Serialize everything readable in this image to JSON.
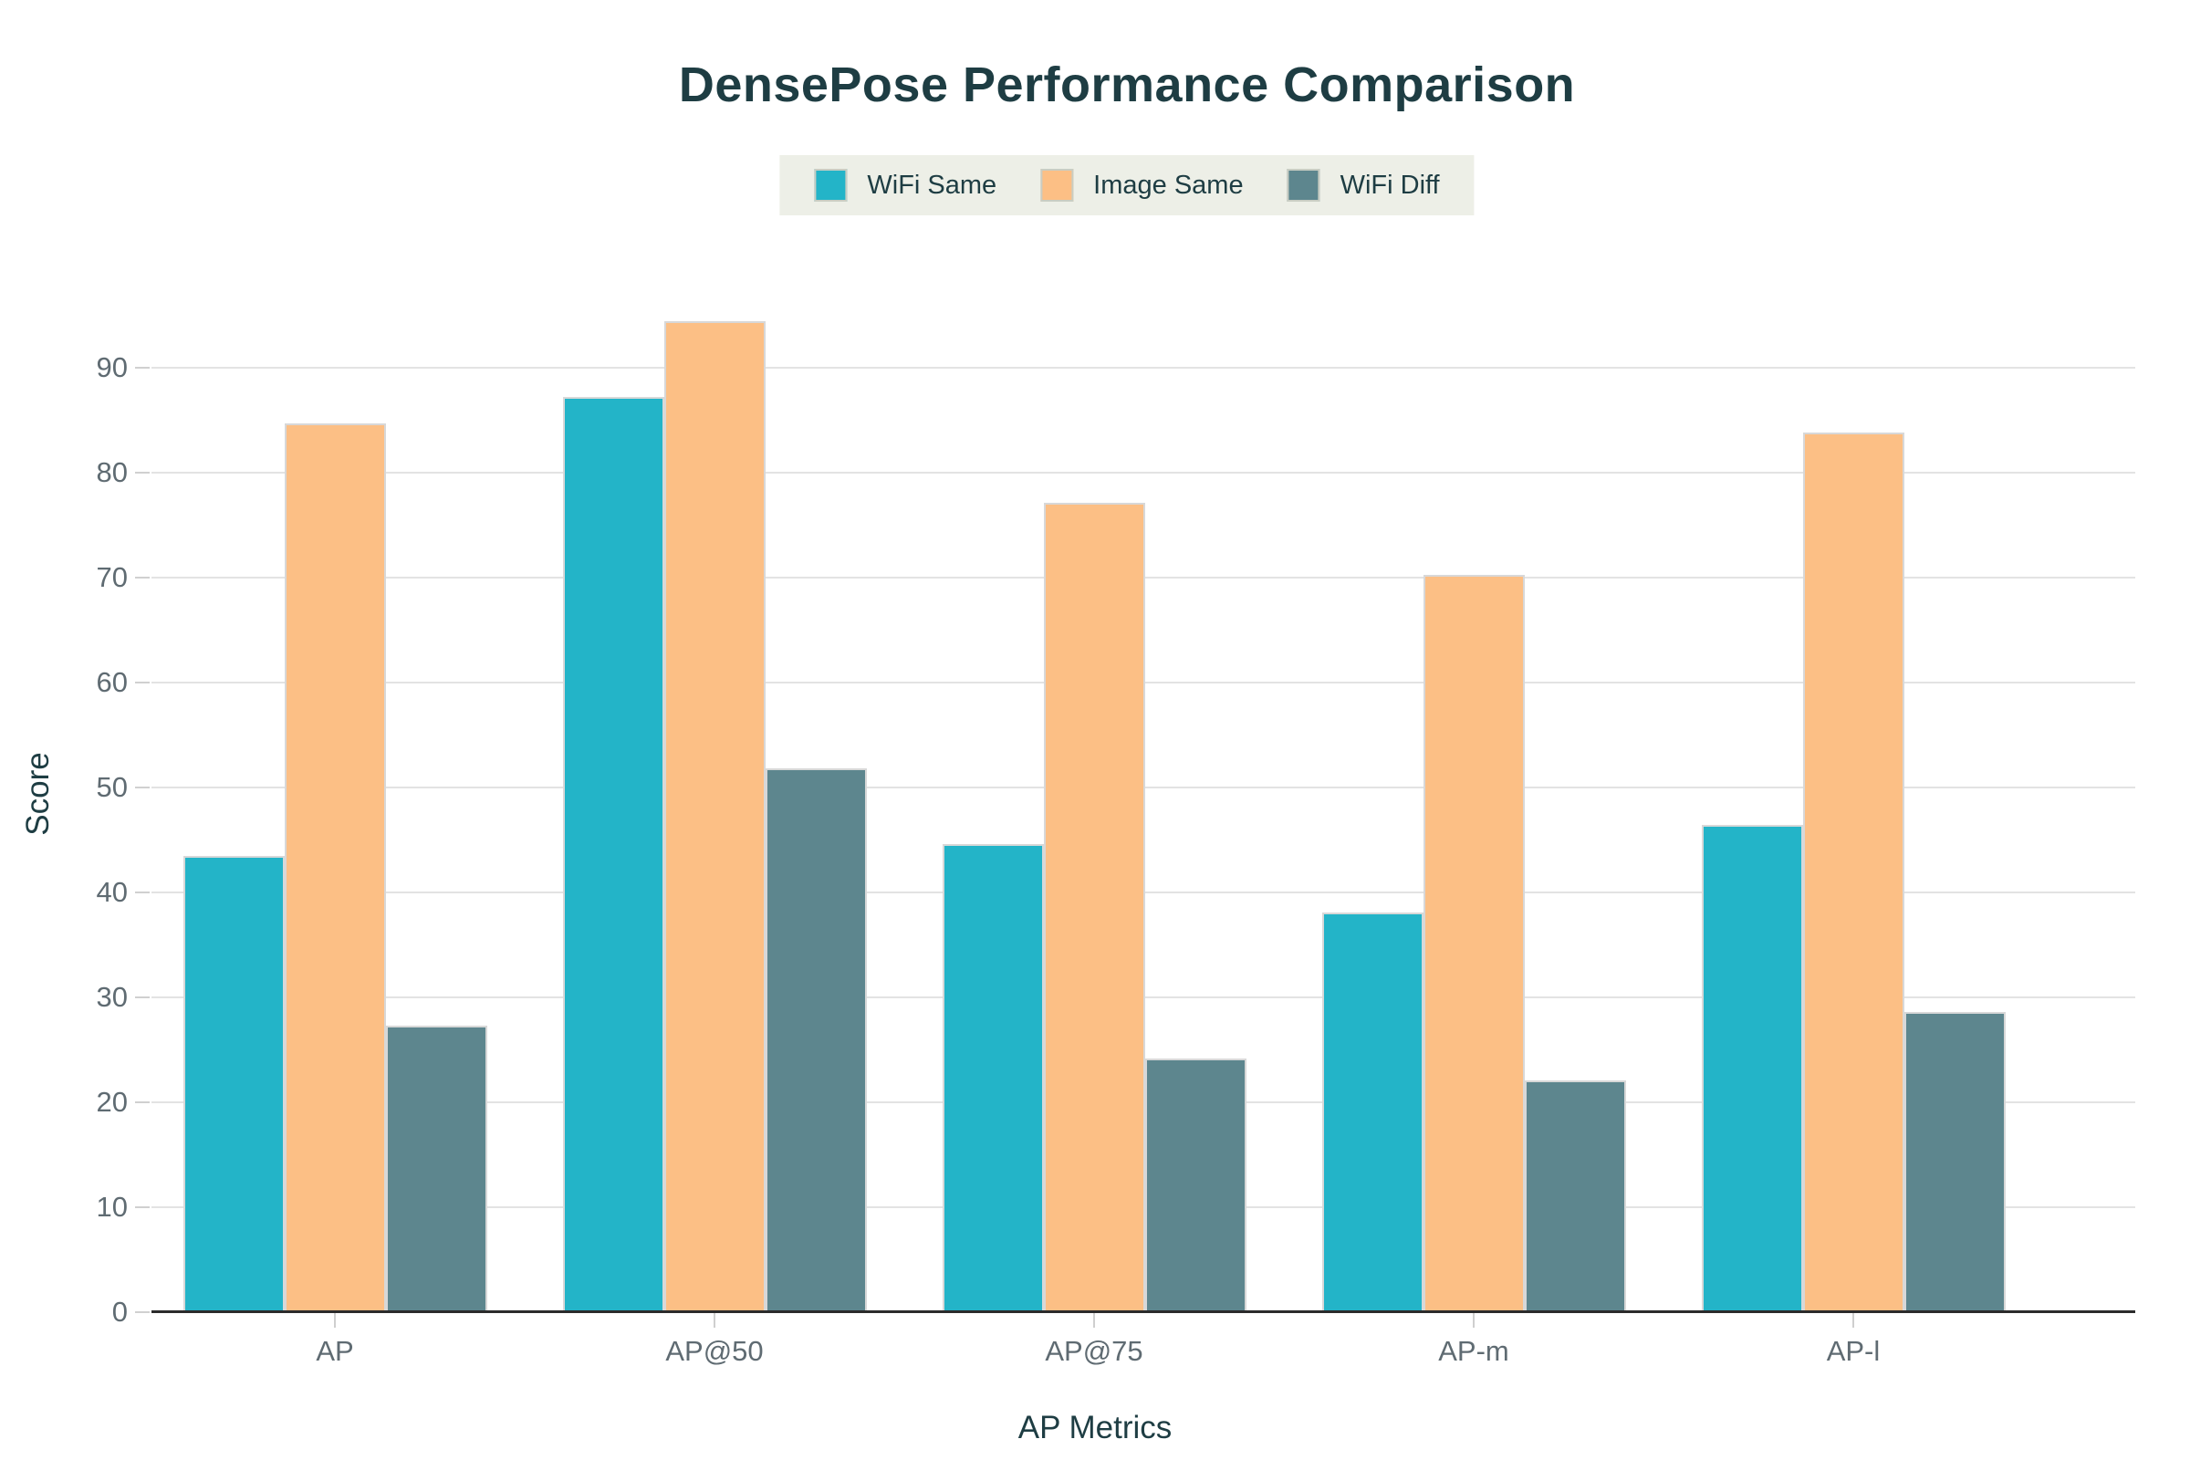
{
  "title": "DensePose Performance Comparison",
  "legend": {
    "entries": [
      "WiFi Same",
      "Image Same",
      "WiFi Diff"
    ],
    "background": "#edefe7"
  },
  "colors": {
    "wifi_same": "#23b4c8",
    "image_same": "#fcbf85",
    "wifi_diff": "#5d868e",
    "title_text": "#1e3d43",
    "tick_text": "#5f6b72",
    "gridline": "#e3e3e3",
    "axis_line": "#2b2b2b",
    "bar_border": "#d8d8d8"
  },
  "chart_data": {
    "type": "bar",
    "title": "DensePose Performance Comparison",
    "xlabel": "AP Metrics",
    "ylabel": "Score",
    "categories": [
      "AP",
      "AP@50",
      "AP@75",
      "AP-m",
      "AP-l"
    ],
    "series": [
      {
        "name": "WiFi Same",
        "color": "#23b4c8",
        "values": [
          43.5,
          87.2,
          44.6,
          38.1,
          46.4
        ]
      },
      {
        "name": "Image Same",
        "color": "#fcbf85",
        "values": [
          84.7,
          94.4,
          77.1,
          70.3,
          83.8
        ]
      },
      {
        "name": "WiFi Diff",
        "color": "#5d868e",
        "values": [
          27.3,
          51.8,
          24.2,
          22.1,
          28.6
        ]
      }
    ],
    "ylim": [
      0,
      95
    ],
    "yticks": [
      0,
      10,
      20,
      30,
      40,
      50,
      60,
      70,
      80,
      90
    ],
    "grid": true,
    "legend_position": "top-center"
  }
}
